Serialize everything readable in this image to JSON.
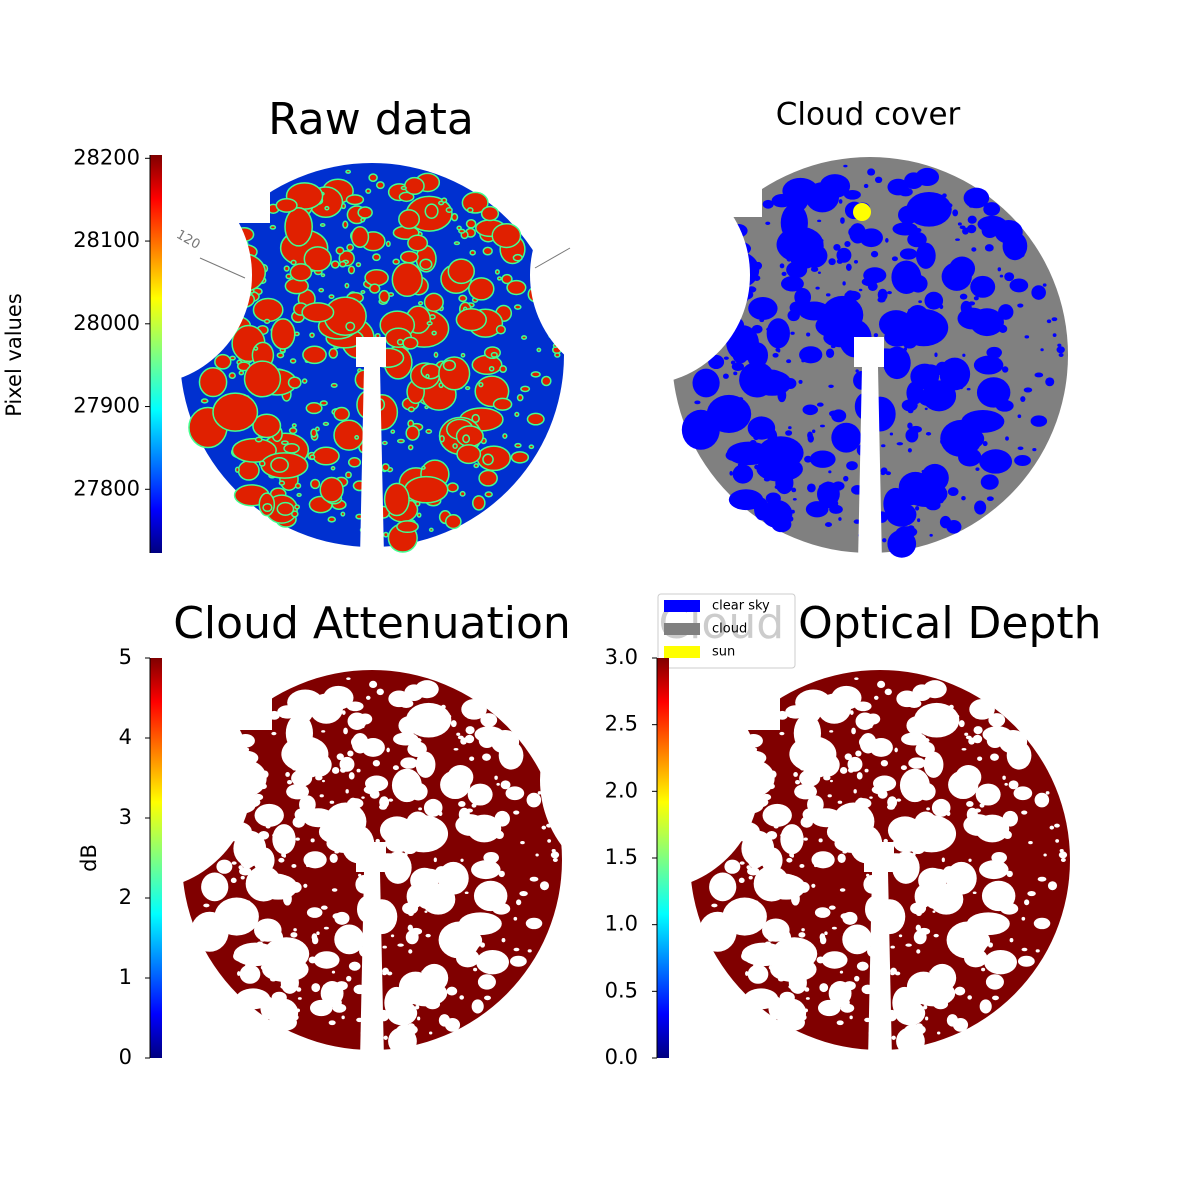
{
  "chart_data": [
    {
      "type": "image",
      "title": "Raw data",
      "ylabel": "Pixel values",
      "annotation": "120",
      "ylim": [
        27723,
        28204
      ],
      "yticks": [
        27800,
        27900,
        28000,
        28100,
        28200
      ],
      "colormap": "jet",
      "color": "#0030d0"
    },
    {
      "type": "image",
      "title": "Cloud cover",
      "series": [
        {
          "name": "clear sky",
          "color": "#0000ff"
        },
        {
          "name": "cloud",
          "color": "#808080"
        },
        {
          "name": "sun",
          "color": "#ffff00"
        }
      ]
    },
    {
      "type": "image",
      "title": "Cloud Attenuation",
      "ylabel": "dB",
      "ylim": [
        0,
        5
      ],
      "yticks": [
        0,
        1,
        2,
        3,
        4,
        5
      ],
      "colormap": "jet",
      "color": "#800000"
    },
    {
      "type": "image",
      "title": "Cloud Optical Depth",
      "ylim": [
        0,
        3
      ],
      "yticks": [
        {
          "value": 0,
          "label": "0.0"
        },
        0.5,
        {
          "value": 1,
          "label": "1.0"
        },
        1.5,
        {
          "value": 2,
          "label": "2.0"
        },
        2.5,
        {
          "value": 3,
          "label": "3.0"
        }
      ],
      "colormap": "jet",
      "color": "#800000"
    }
  ]
}
